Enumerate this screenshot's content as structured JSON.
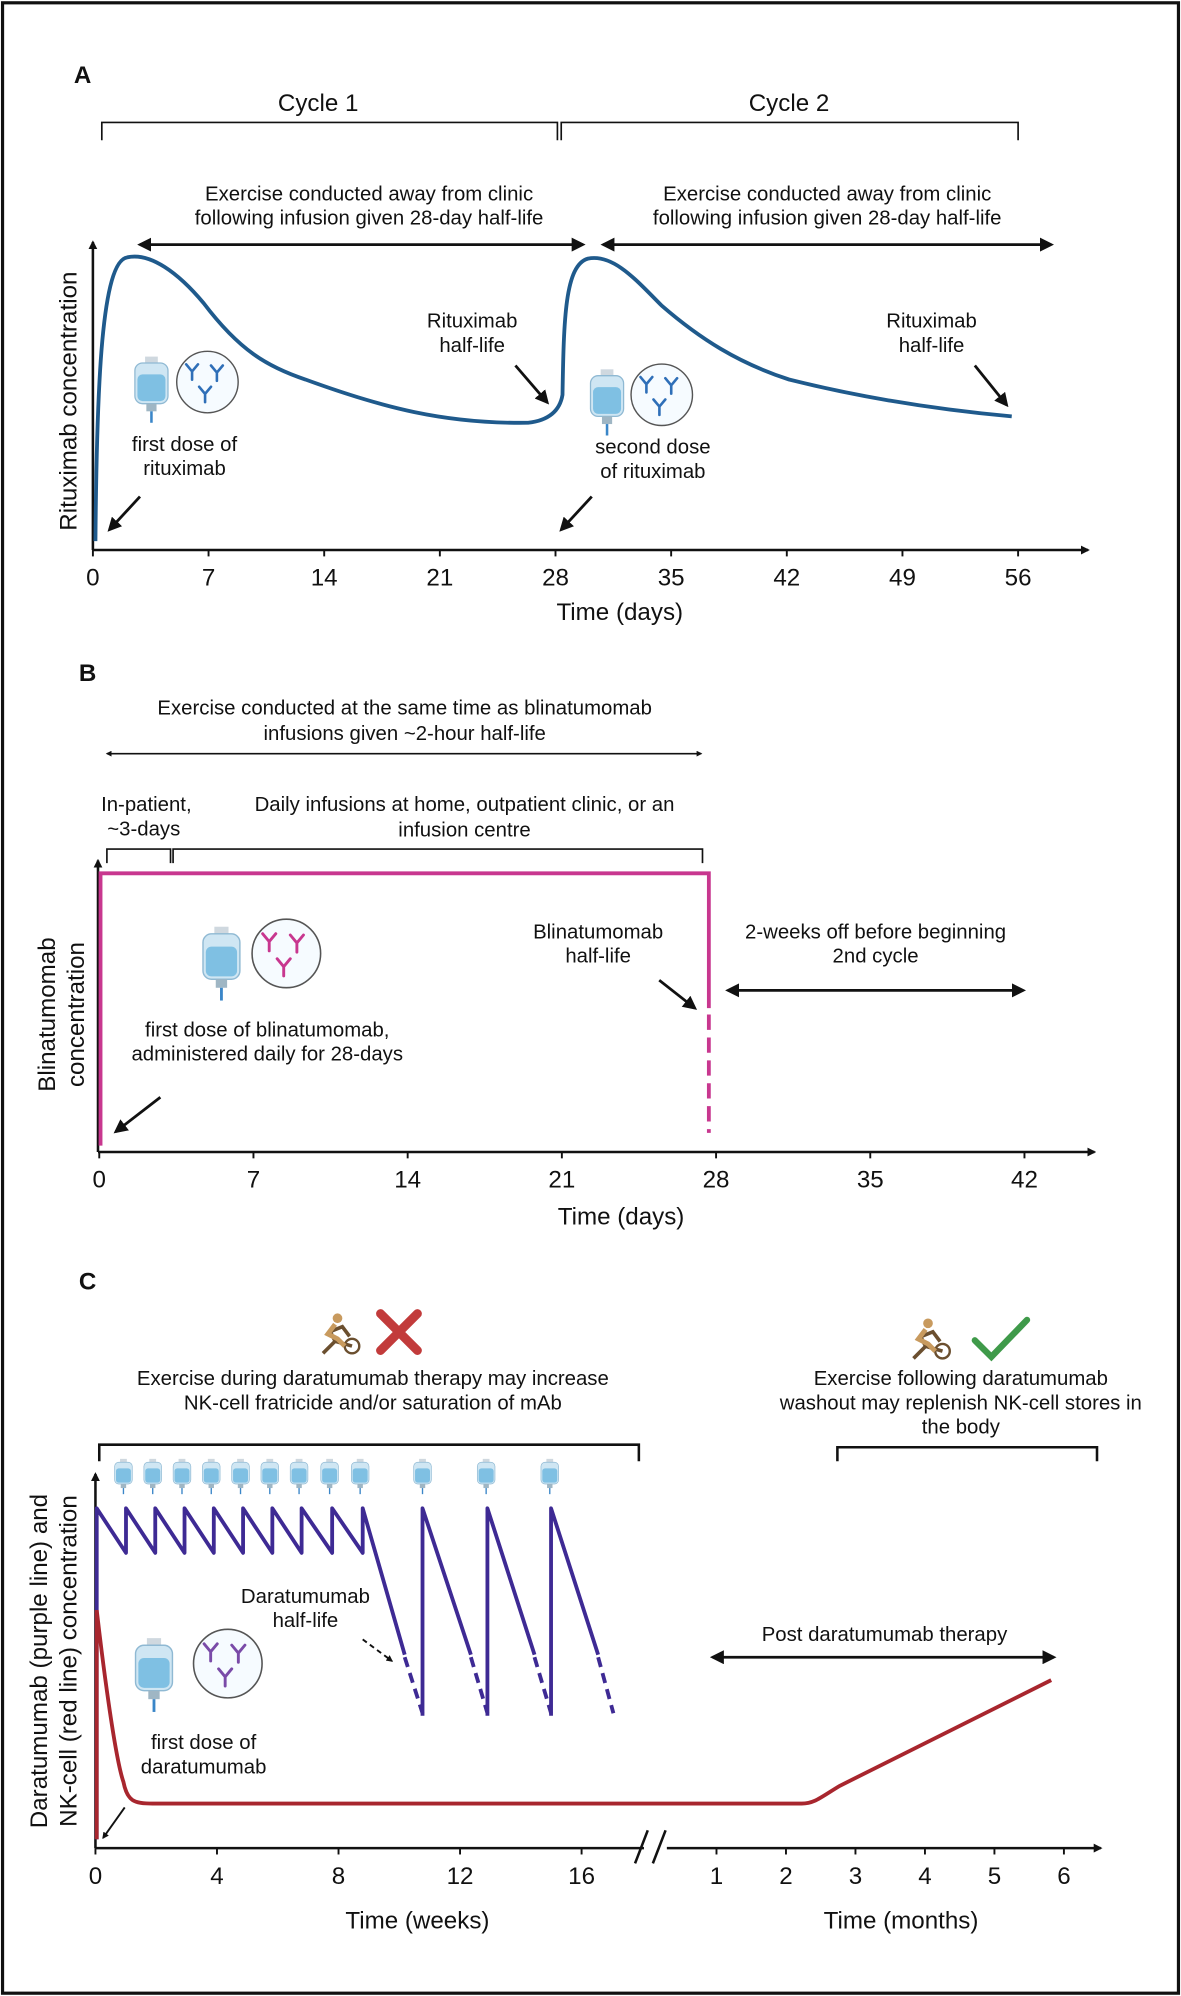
{
  "panel_a": {
    "label": "A",
    "cycles": [
      "Cycle 1",
      "Cycle 2"
    ],
    "exercise_note": [
      "Exercise conducted away from clinic",
      "following infusion given 28-day half-life"
    ],
    "half_life": [
      "Rituximab",
      "half-life"
    ],
    "first_dose": [
      "first dose of",
      "rituximab"
    ],
    "second_dose": [
      "second dose",
      "of rituximab"
    ],
    "y_label": "Rituximab concentration",
    "x_label": "Time (days)",
    "x_ticks": [
      0,
      7,
      14,
      21,
      28,
      35,
      42,
      49,
      56
    ]
  },
  "panel_b": {
    "label": "B",
    "exercise_note": [
      "Exercise conducted at the same time as blinatumomab",
      "infusions given ~2-hour half-life"
    ],
    "inpatient": [
      "In-patient,",
      "~3-days"
    ],
    "daily": [
      "Daily infusions at home, outpatient clinic, or an",
      "infusion centre"
    ],
    "half_life": [
      "Blinatumomab",
      "half-life"
    ],
    "off": [
      "2-weeks off before beginning",
      "2nd cycle"
    ],
    "first_dose": [
      "first dose of blinatumomab,",
      "administered daily for 28-days"
    ],
    "y_label": [
      "Blinatumomab",
      "concentration"
    ],
    "x_label": "Time (days)",
    "x_ticks": [
      0,
      7,
      14,
      21,
      28,
      35,
      42
    ]
  },
  "panel_c": {
    "label": "C",
    "exercise_during": [
      "Exercise during daratumumab therapy may increase",
      "NK-cell fratricide and/or saturation of mAb"
    ],
    "exercise_following": [
      "Exercise following daratumumab",
      "washout may replenish NK-cell stores in",
      "the body"
    ],
    "half_life": [
      "Daratumumab",
      "half-life"
    ],
    "post": "Post daratumumab therapy",
    "first_dose": [
      "first dose of",
      "daratumumab"
    ],
    "y_label": [
      "Daratumumab (purple line) and",
      "NK-cell (red line) concentration"
    ],
    "x_label_weeks": "Time (weeks)",
    "x_label_months": "Time (months)",
    "x_ticks_weeks": [
      0,
      4,
      8,
      12,
      16
    ],
    "x_ticks_months": [
      1,
      2,
      3,
      4,
      5,
      6
    ]
  }
}
